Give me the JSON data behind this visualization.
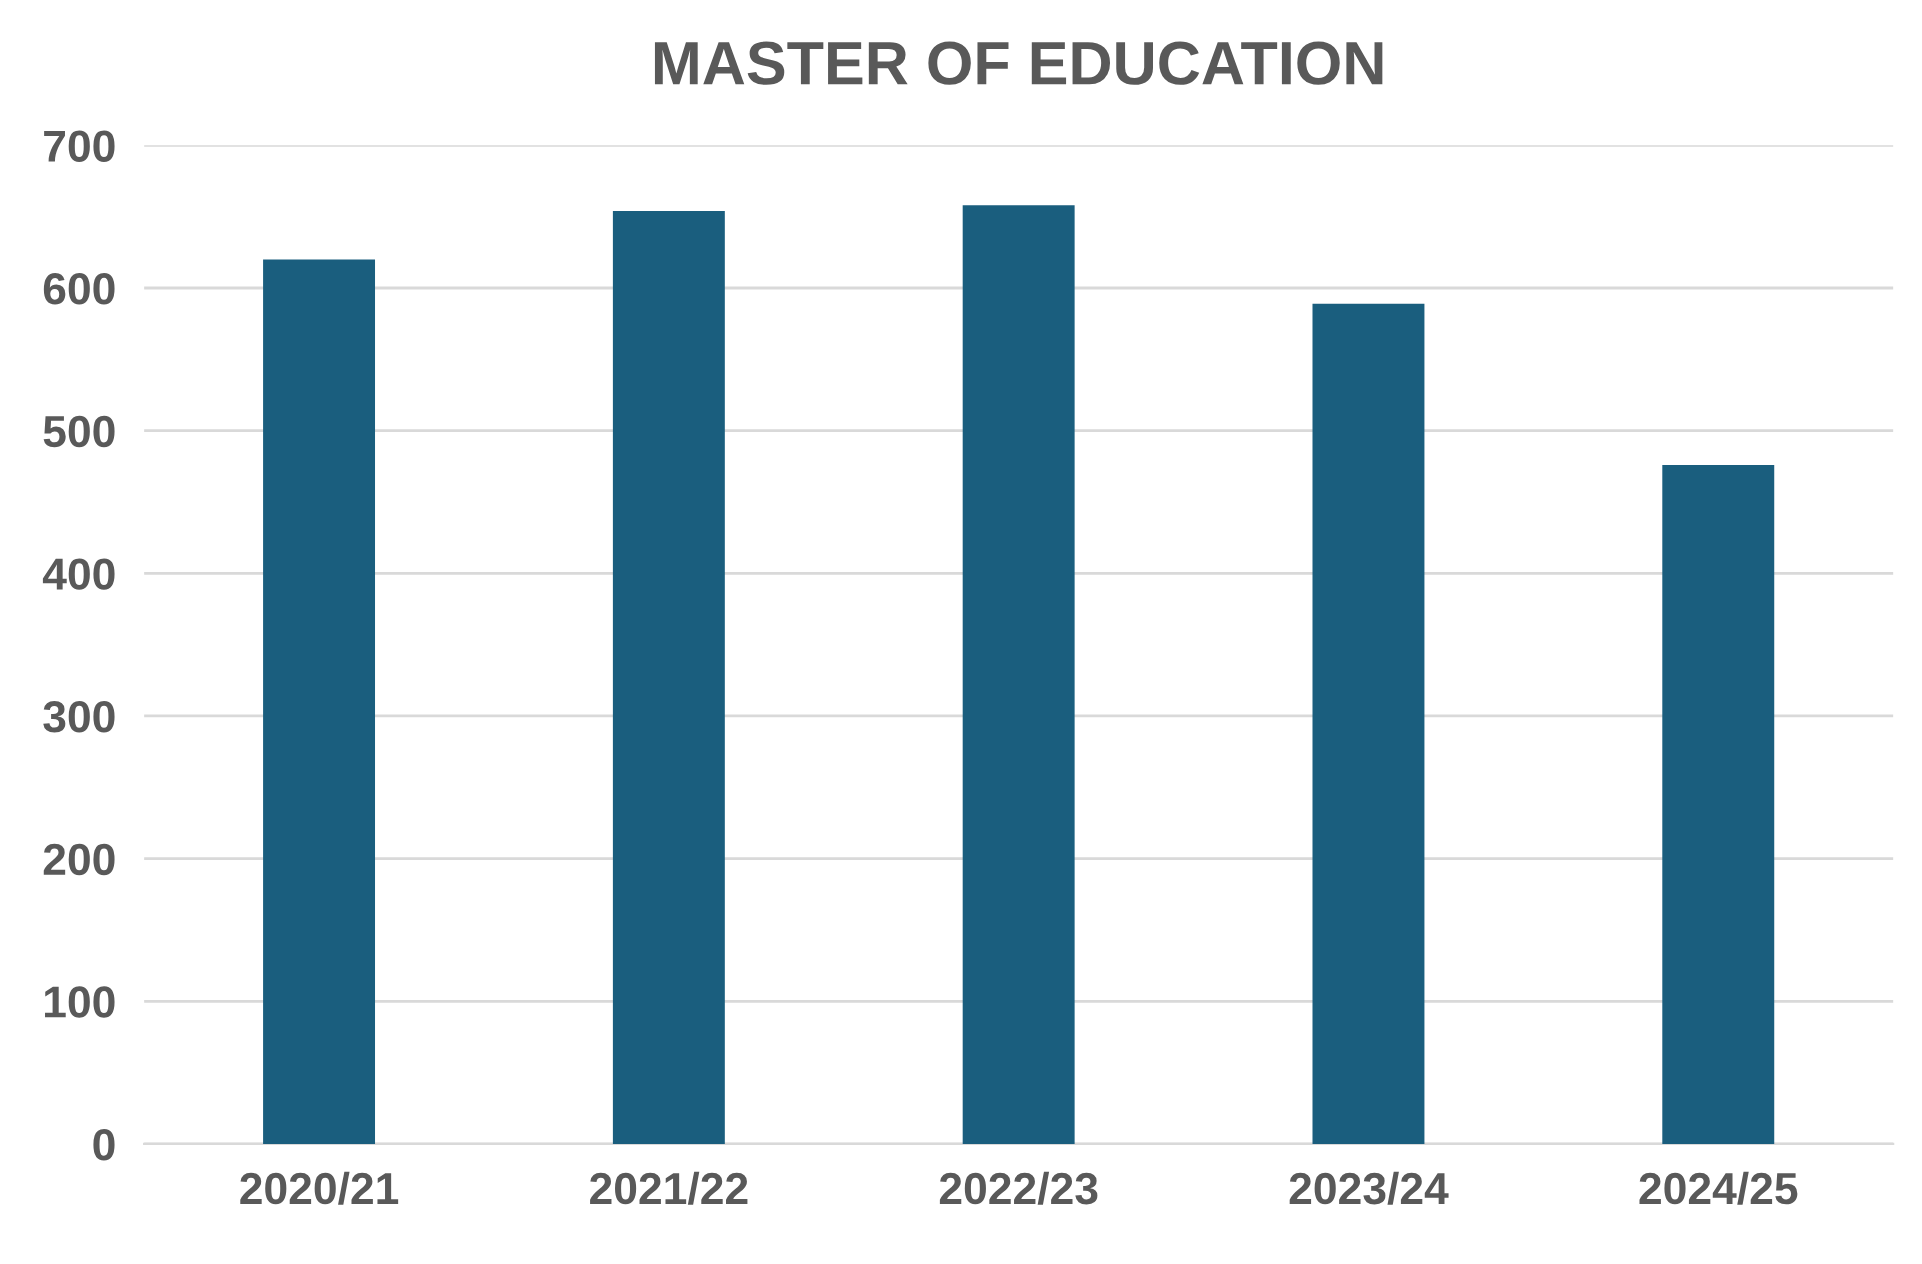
{
  "chart_data": {
    "type": "bar",
    "title": "MASTER OF EDUCATION",
    "categories": [
      "2020/21",
      "2021/22",
      "2022/23",
      "2023/24",
      "2024/25"
    ],
    "values": [
      620,
      654,
      658,
      589,
      476
    ],
    "color": "#1a5e7e",
    "ylim": [
      0,
      700
    ],
    "yticks": [
      0,
      100,
      200,
      300,
      400,
      500,
      600,
      700
    ],
    "grid": "y",
    "legend": false
  }
}
